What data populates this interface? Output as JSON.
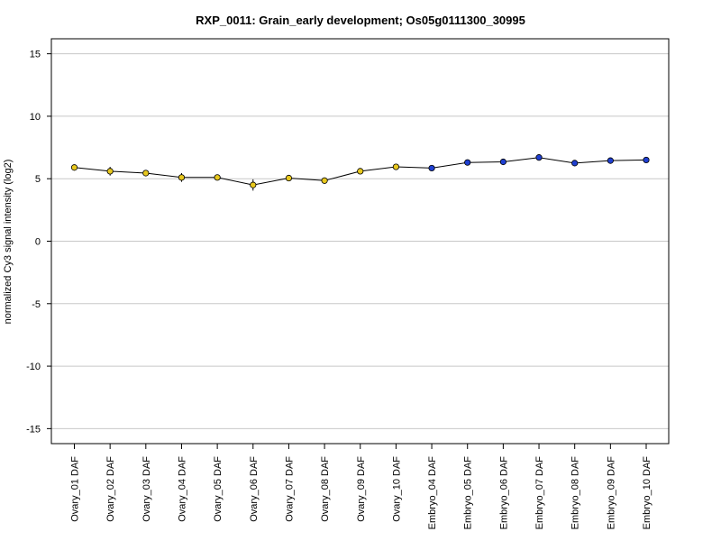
{
  "chart_data": {
    "type": "line",
    "title": "RXP_0011: Grain_early development; Os05g0111300_30995",
    "xlabel": "",
    "ylabel": "normalized Cy3 signal intensity (log2)",
    "ylim": [
      -16.2,
      16.2
    ],
    "yticks": [
      -15,
      -10,
      -5,
      0,
      5,
      10,
      15
    ],
    "grid": true,
    "categories": [
      "Ovary_01 DAF",
      "Ovary_02 DAF",
      "Ovary_03 DAF",
      "Ovary_04 DAF",
      "Ovary_05 DAF",
      "Ovary_06 DAF",
      "Ovary_07 DAF",
      "Ovary_08 DAF",
      "Ovary_09 DAF",
      "Ovary_10 DAF",
      "Embryo_04 DAF",
      "Embryo_05 DAF",
      "Embryo_06 DAF",
      "Embryo_07 DAF",
      "Embryo_08 DAF",
      "Embryo_09 DAF",
      "Embryo_10 DAF"
    ],
    "series": [
      {
        "values": [
          5.9,
          5.6,
          5.45,
          5.1,
          5.1,
          4.5,
          5.05,
          4.85,
          5.6,
          5.95,
          5.85,
          6.3,
          6.35,
          6.7,
          6.25,
          6.45,
          6.5
        ],
        "errors": [
          0.15,
          0.35,
          0.2,
          0.35,
          0.2,
          0.45,
          0.15,
          0.25,
          0.15,
          0.2,
          0.1,
          0.1,
          0.1,
          0.25,
          0.1,
          0.1,
          0.1
        ],
        "point_colors": [
          "#e8c81e",
          "#e8c81e",
          "#e8c81e",
          "#e8c81e",
          "#e8c81e",
          "#e8c81e",
          "#e8c81e",
          "#e8c81e",
          "#e8c81e",
          "#e8c81e",
          "#1f3fd1",
          "#1f3fd1",
          "#1f3fd1",
          "#1f3fd1",
          "#1f3fd1",
          "#1f3fd1",
          "#1f3fd1"
        ]
      }
    ],
    "colors": {
      "ovary": "#e8c81e",
      "embryo": "#1f3fd1",
      "grid": "#c8c8c8",
      "line": "#000000"
    }
  }
}
